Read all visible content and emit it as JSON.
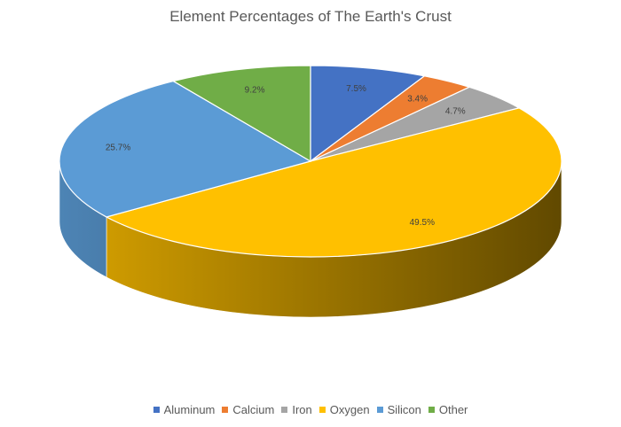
{
  "chart_data": {
    "type": "pie",
    "title": "Element Percentages of The Earth's Crust",
    "categories": [
      "Aluminum",
      "Calcium",
      "Iron",
      "Oxygen",
      "Silicon",
      "Other"
    ],
    "values": [
      7.5,
      3.4,
      4.7,
      49.5,
      25.7,
      9.2
    ],
    "data_labels": [
      "7.5%",
      "3.4%",
      "4.7%",
      "49.5%",
      "25.7%",
      "9.2%"
    ],
    "colors": [
      "#4472C4",
      "#ED7D31",
      "#A5A5A5",
      "#FFC000",
      "#5B9BD5",
      "#70AD47"
    ],
    "style": "3d-pie",
    "legend": "bottom"
  }
}
